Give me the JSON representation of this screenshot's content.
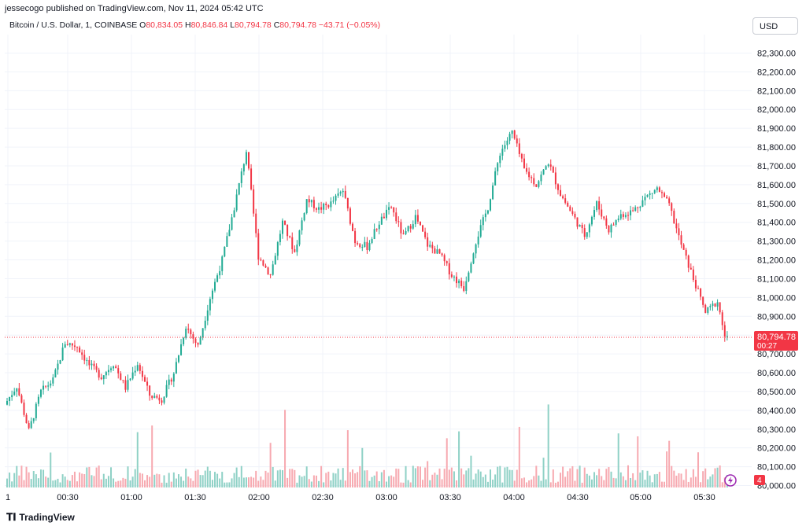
{
  "publisher_line": "jessecogo published on TradingView.com, Nov 11, 2024 05:42 UTC",
  "legend": {
    "symbol": "Bitcoin / U.S. Dollar, 1, COINBASE",
    "open_label": "O",
    "open": "80,834.05",
    "high_label": "H",
    "high": "80,846.84",
    "low_label": "L",
    "low": "80,794.78",
    "close_label": "C",
    "close": "80,794.78",
    "change": "−43.71 (−0.05%)"
  },
  "currency_button": "USD",
  "price_tag": {
    "price": "80,794.78",
    "countdown": "00:27"
  },
  "volume_badge": "4",
  "footer_brand": "TradingView",
  "colors": {
    "up": "#22ab94",
    "down": "#f23645",
    "up_vol": "#8fd1c6",
    "down_vol": "#f7a9b0",
    "grid": "#f0f3fa"
  },
  "chart_data": {
    "type": "candlestick",
    "title": "Bitcoin / U.S. Dollar, 1, COINBASE",
    "xlabel": "",
    "ylabel": "",
    "ylim": [
      80000,
      82400
    ],
    "y_ticks": [
      "82,300.00",
      "82,200.00",
      "82,100.00",
      "82,000.00",
      "81,900.00",
      "81,800.00",
      "81,700.00",
      "81,600.00",
      "81,500.00",
      "81,400.00",
      "81,300.00",
      "81,200.00",
      "81,100.00",
      "81,000.00",
      "80,900.00",
      "80,800.00",
      "80,700.00",
      "80,600.00",
      "80,500.00",
      "80,400.00",
      "80,300.00",
      "80,200.00",
      "80,100.00",
      "80,000.00"
    ],
    "x_ticks": [
      "1",
      "00:30",
      "01:00",
      "01:30",
      "02:00",
      "02:30",
      "03:00",
      "03:30",
      "04:00",
      "04:30",
      "05:00",
      "05:30"
    ],
    "series": [
      {
        "name": "Price",
        "approx_path": [
          [
            0,
            80430
          ],
          [
            5,
            80530
          ],
          [
            10,
            80290
          ],
          [
            15,
            80500
          ],
          [
            20,
            80560
          ],
          [
            25,
            80760
          ],
          [
            30,
            80740
          ],
          [
            35,
            80640
          ],
          [
            40,
            80580
          ],
          [
            45,
            80650
          ],
          [
            50,
            80520
          ],
          [
            55,
            80650
          ],
          [
            60,
            80480
          ],
          [
            65,
            80460
          ],
          [
            70,
            80600
          ],
          [
            75,
            80850
          ],
          [
            80,
            80740
          ],
          [
            85,
            81000
          ],
          [
            90,
            81200
          ],
          [
            95,
            81480
          ],
          [
            100,
            81780
          ],
          [
            105,
            81220
          ],
          [
            110,
            81120
          ],
          [
            115,
            81400
          ],
          [
            120,
            81240
          ],
          [
            125,
            81520
          ],
          [
            130,
            81470
          ],
          [
            135,
            81500
          ],
          [
            140,
            81570
          ],
          [
            145,
            81300
          ],
          [
            150,
            81270
          ],
          [
            155,
            81400
          ],
          [
            160,
            81480
          ],
          [
            165,
            81320
          ],
          [
            170,
            81430
          ],
          [
            175,
            81280
          ],
          [
            180,
            81230
          ],
          [
            185,
            81120
          ],
          [
            190,
            81050
          ],
          [
            195,
            81300
          ],
          [
            200,
            81480
          ],
          [
            205,
            81770
          ],
          [
            210,
            81880
          ],
          [
            215,
            81680
          ],
          [
            220,
            81600
          ],
          [
            225,
            81720
          ],
          [
            230,
            81550
          ],
          [
            235,
            81440
          ],
          [
            240,
            81330
          ],
          [
            245,
            81500
          ],
          [
            250,
            81360
          ],
          [
            255,
            81440
          ],
          [
            260,
            81460
          ],
          [
            265,
            81530
          ],
          [
            270,
            81580
          ],
          [
            275,
            81490
          ],
          [
            280,
            81280
          ],
          [
            285,
            81100
          ],
          [
            290,
            80920
          ],
          [
            295,
            80980
          ],
          [
            298,
            80795
          ]
        ]
      }
    ],
    "volume": [
      {
        "name": "Volume",
        "badge": "4"
      }
    ]
  }
}
